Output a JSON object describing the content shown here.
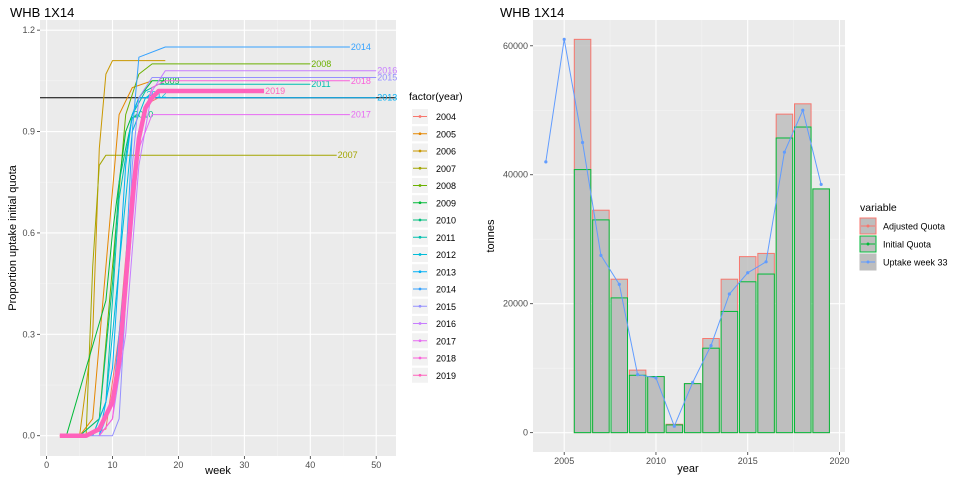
{
  "chart_data": [
    {
      "type": "line",
      "title": "WHB 1X14",
      "xlabel": "week",
      "ylabel": "Proportion uptake initial quota",
      "xlim": [
        -1,
        53
      ],
      "ylim": [
        -0.06,
        1.23
      ],
      "xticks": [
        0,
        10,
        20,
        30,
        40,
        50
      ],
      "yticks": [
        0.0,
        0.3,
        0.6,
        0.9,
        1.2
      ],
      "ytick_labels": [
        "0.0",
        "0.3",
        "0.6",
        "0.9",
        "1.2"
      ],
      "reference_line": 1.0,
      "legend_title": "factor(year)",
      "legend_position": "right",
      "highlight_series": "2019",
      "series": [
        {
          "name": "2004",
          "color": "#F8766D",
          "x": [
            2,
            6,
            9,
            11,
            13,
            15,
            17,
            19
          ],
          "y": [
            0.0,
            0.0,
            0.02,
            0.3,
            0.75,
            0.98,
            1.0,
            1.0
          ]
        },
        {
          "name": "2005",
          "color": "#E58700",
          "x": [
            2,
            5,
            7,
            9,
            11,
            13,
            16
          ],
          "y": [
            0.0,
            0.0,
            0.05,
            0.5,
            0.95,
            1.03,
            1.05
          ]
        },
        {
          "name": "2006",
          "color": "#C99800",
          "x": [
            5,
            7,
            8,
            9,
            10,
            18
          ],
          "y": [
            0.0,
            0.3,
            0.85,
            1.07,
            1.11,
            1.11
          ]
        },
        {
          "name": "2007",
          "color": "#A3A500",
          "x": [
            6,
            7,
            8,
            9,
            10,
            11,
            12,
            44
          ],
          "y": [
            0.0,
            0.5,
            0.8,
            0.83,
            0.83,
            0.83,
            0.83,
            0.83
          ],
          "label": "2007",
          "label_x": 44
        },
        {
          "name": "2008",
          "color": "#6BB100",
          "x": [
            5,
            8,
            10,
            12,
            14,
            16,
            18,
            40
          ],
          "y": [
            0.0,
            0.05,
            0.5,
            0.95,
            1.07,
            1.1,
            1.1,
            1.1
          ],
          "label": "2008",
          "label_x": 40
        },
        {
          "name": "2009",
          "color": "#00BA38",
          "x": [
            3,
            6,
            9,
            10,
            12,
            14,
            16,
            18
          ],
          "y": [
            0.0,
            0.2,
            0.4,
            0.6,
            0.9,
            1.0,
            1.05,
            1.05
          ],
          "label": "2009",
          "label_x": 17
        },
        {
          "name": "2010",
          "color": "#00BF7D",
          "x": [
            5,
            8,
            10,
            11,
            12,
            13,
            14
          ],
          "y": [
            0.0,
            0.05,
            0.45,
            0.75,
            0.85,
            0.94,
            0.95
          ],
          "label": "2010",
          "label_x": 13
        },
        {
          "name": "2011",
          "color": "#00C0AF",
          "x": [
            7,
            9,
            10,
            11,
            13,
            15,
            17,
            40
          ],
          "y": [
            0.0,
            0.1,
            0.4,
            0.7,
            0.95,
            1.02,
            1.04,
            1.04
          ],
          "label": "2011",
          "label_x": 40
        },
        {
          "name": "2012",
          "color": "#00BCD8",
          "x": [
            7,
            9,
            11,
            13,
            15,
            16
          ],
          "y": [
            0.0,
            0.1,
            0.5,
            0.9,
            1.0,
            1.01
          ],
          "label": "2012",
          "label_x": 15
        },
        {
          "name": "2013",
          "color": "#00B0F6",
          "x": [
            8,
            10,
            11,
            12,
            13,
            14,
            16,
            50
          ],
          "y": [
            0.0,
            0.2,
            0.5,
            0.8,
            0.95,
            1.0,
            1.0,
            1.0
          ],
          "label": "2013",
          "label_x": 50
        },
        {
          "name": "2014",
          "color": "#35A2FF",
          "x": [
            8,
            10,
            12,
            13,
            14,
            18,
            46
          ],
          "y": [
            0.0,
            0.1,
            0.5,
            0.9,
            1.12,
            1.15,
            1.15
          ],
          "label": "2014",
          "label_x": 46
        },
        {
          "name": "2015",
          "color": "#9590FF",
          "x": [
            5,
            10,
            11,
            12,
            13,
            14,
            16,
            50
          ],
          "y": [
            0.0,
            0.0,
            0.05,
            0.4,
            0.8,
            1.0,
            1.06,
            1.06
          ],
          "label": "2015",
          "label_x": 50
        },
        {
          "name": "2016",
          "color": "#C77CFF",
          "x": [
            8,
            10,
            12,
            14,
            16,
            18,
            50
          ],
          "y": [
            0.0,
            0.05,
            0.3,
            0.8,
            1.02,
            1.08,
            1.08
          ],
          "label": "2016",
          "label_x": 50
        },
        {
          "name": "2017",
          "color": "#E76BF3",
          "x": [
            8,
            10,
            12,
            14,
            16,
            46
          ],
          "y": [
            0.0,
            0.05,
            0.4,
            0.85,
            0.95,
            0.95
          ],
          "label": "2017",
          "label_x": 46
        },
        {
          "name": "2018",
          "color": "#FA62DB",
          "x": [
            8,
            10,
            12,
            14,
            16,
            18,
            46
          ],
          "y": [
            0.0,
            0.05,
            0.5,
            0.9,
            1.03,
            1.05,
            1.05
          ],
          "label": "2018",
          "label_x": 46
        },
        {
          "name": "2019",
          "color": "#FF62BC",
          "x": [
            2,
            4,
            6,
            8,
            10,
            11,
            12,
            13,
            14,
            15,
            16,
            17,
            20,
            25,
            30,
            33
          ],
          "y": [
            0.0,
            0.0,
            0.0,
            0.02,
            0.1,
            0.22,
            0.45,
            0.7,
            0.88,
            0.97,
            1.0,
            1.02,
            1.02,
            1.02,
            1.02,
            1.02
          ],
          "label": "2019",
          "label_x": 33
        }
      ]
    },
    {
      "type": "bar",
      "title": "WHB 1X14",
      "xlabel": "year",
      "ylabel": "tonnes",
      "xlim": [
        2003.3,
        2020.3
      ],
      "ylim": [
        -3000,
        64000
      ],
      "xticks": [
        2005,
        2010,
        2015,
        2020
      ],
      "yticks": [
        0,
        20000,
        40000,
        60000
      ],
      "legend_title": "variable",
      "legend_position": "right",
      "series": [
        {
          "name": "Adjusted Quota",
          "color": "#F8766D",
          "x": [
            2006,
            2007,
            2008,
            2009,
            2010,
            2011,
            2012,
            2013,
            2014,
            2015,
            2016,
            2017,
            2018,
            2019
          ],
          "values": [
            61000,
            34500,
            23800,
            9700,
            8700,
            1300,
            7600,
            14600,
            23800,
            27300,
            27800,
            49400,
            51000,
            37800
          ]
        },
        {
          "name": "Initial Quota",
          "color": "#00BA38",
          "x": [
            2006,
            2007,
            2008,
            2009,
            2010,
            2011,
            2012,
            2013,
            2014,
            2015,
            2016,
            2017,
            2018,
            2019
          ],
          "values": [
            40800,
            33000,
            20900,
            8900,
            8700,
            1200,
            7600,
            13100,
            18800,
            23400,
            24600,
            45700,
            47400,
            37800
          ]
        },
        {
          "name": "Uptake week 33",
          "color": "#619CFF",
          "x": [
            2004,
            2005,
            2006,
            2007,
            2008,
            2009,
            2010,
            2011,
            2012,
            2013,
            2014,
            2015,
            2016,
            2017,
            2018,
            2019
          ],
          "values": [
            42000,
            61000,
            45000,
            27500,
            23000,
            9000,
            8500,
            1000,
            7800,
            13500,
            21500,
            24800,
            26500,
            43500,
            50000,
            38500
          ]
        }
      ]
    }
  ]
}
